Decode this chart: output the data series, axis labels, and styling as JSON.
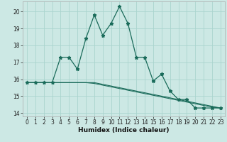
{
  "xlabel": "Humidex (Indice chaleur)",
  "bg_color": "#cce8e4",
  "line_color": "#1a6b5a",
  "grid_color": "#aad4ce",
  "x_data": [
    0,
    1,
    2,
    3,
    4,
    5,
    6,
    7,
    8,
    9,
    10,
    11,
    12,
    13,
    14,
    15,
    16,
    17,
    18,
    19,
    20,
    21,
    22,
    23
  ],
  "y_main": [
    15.8,
    15.8,
    15.8,
    15.8,
    17.3,
    17.3,
    16.6,
    18.4,
    19.8,
    18.6,
    19.3,
    20.3,
    19.3,
    17.3,
    17.3,
    15.9,
    16.3,
    15.3,
    14.8,
    14.8,
    14.3,
    14.3,
    14.3,
    14.3
  ],
  "y_line2": [
    15.8,
    15.8,
    15.8,
    15.8,
    15.8,
    15.8,
    15.8,
    15.8,
    15.8,
    15.7,
    15.6,
    15.5,
    15.4,
    15.3,
    15.2,
    15.1,
    15.0,
    14.9,
    14.8,
    14.7,
    14.6,
    14.5,
    14.4,
    14.3
  ],
  "y_line3": [
    15.8,
    15.8,
    15.8,
    15.8,
    15.8,
    15.8,
    15.8,
    15.8,
    15.75,
    15.65,
    15.55,
    15.45,
    15.35,
    15.25,
    15.15,
    15.05,
    14.95,
    14.85,
    14.75,
    14.65,
    14.55,
    14.45,
    14.35,
    14.3
  ],
  "ylim": [
    13.8,
    20.6
  ],
  "xlim": [
    -0.5,
    23.5
  ],
  "yticks": [
    14,
    15,
    16,
    17,
    18,
    19,
    20
  ],
  "xticks": [
    0,
    1,
    2,
    3,
    4,
    5,
    6,
    7,
    8,
    9,
    10,
    11,
    12,
    13,
    14,
    15,
    16,
    17,
    18,
    19,
    20,
    21,
    22,
    23
  ]
}
